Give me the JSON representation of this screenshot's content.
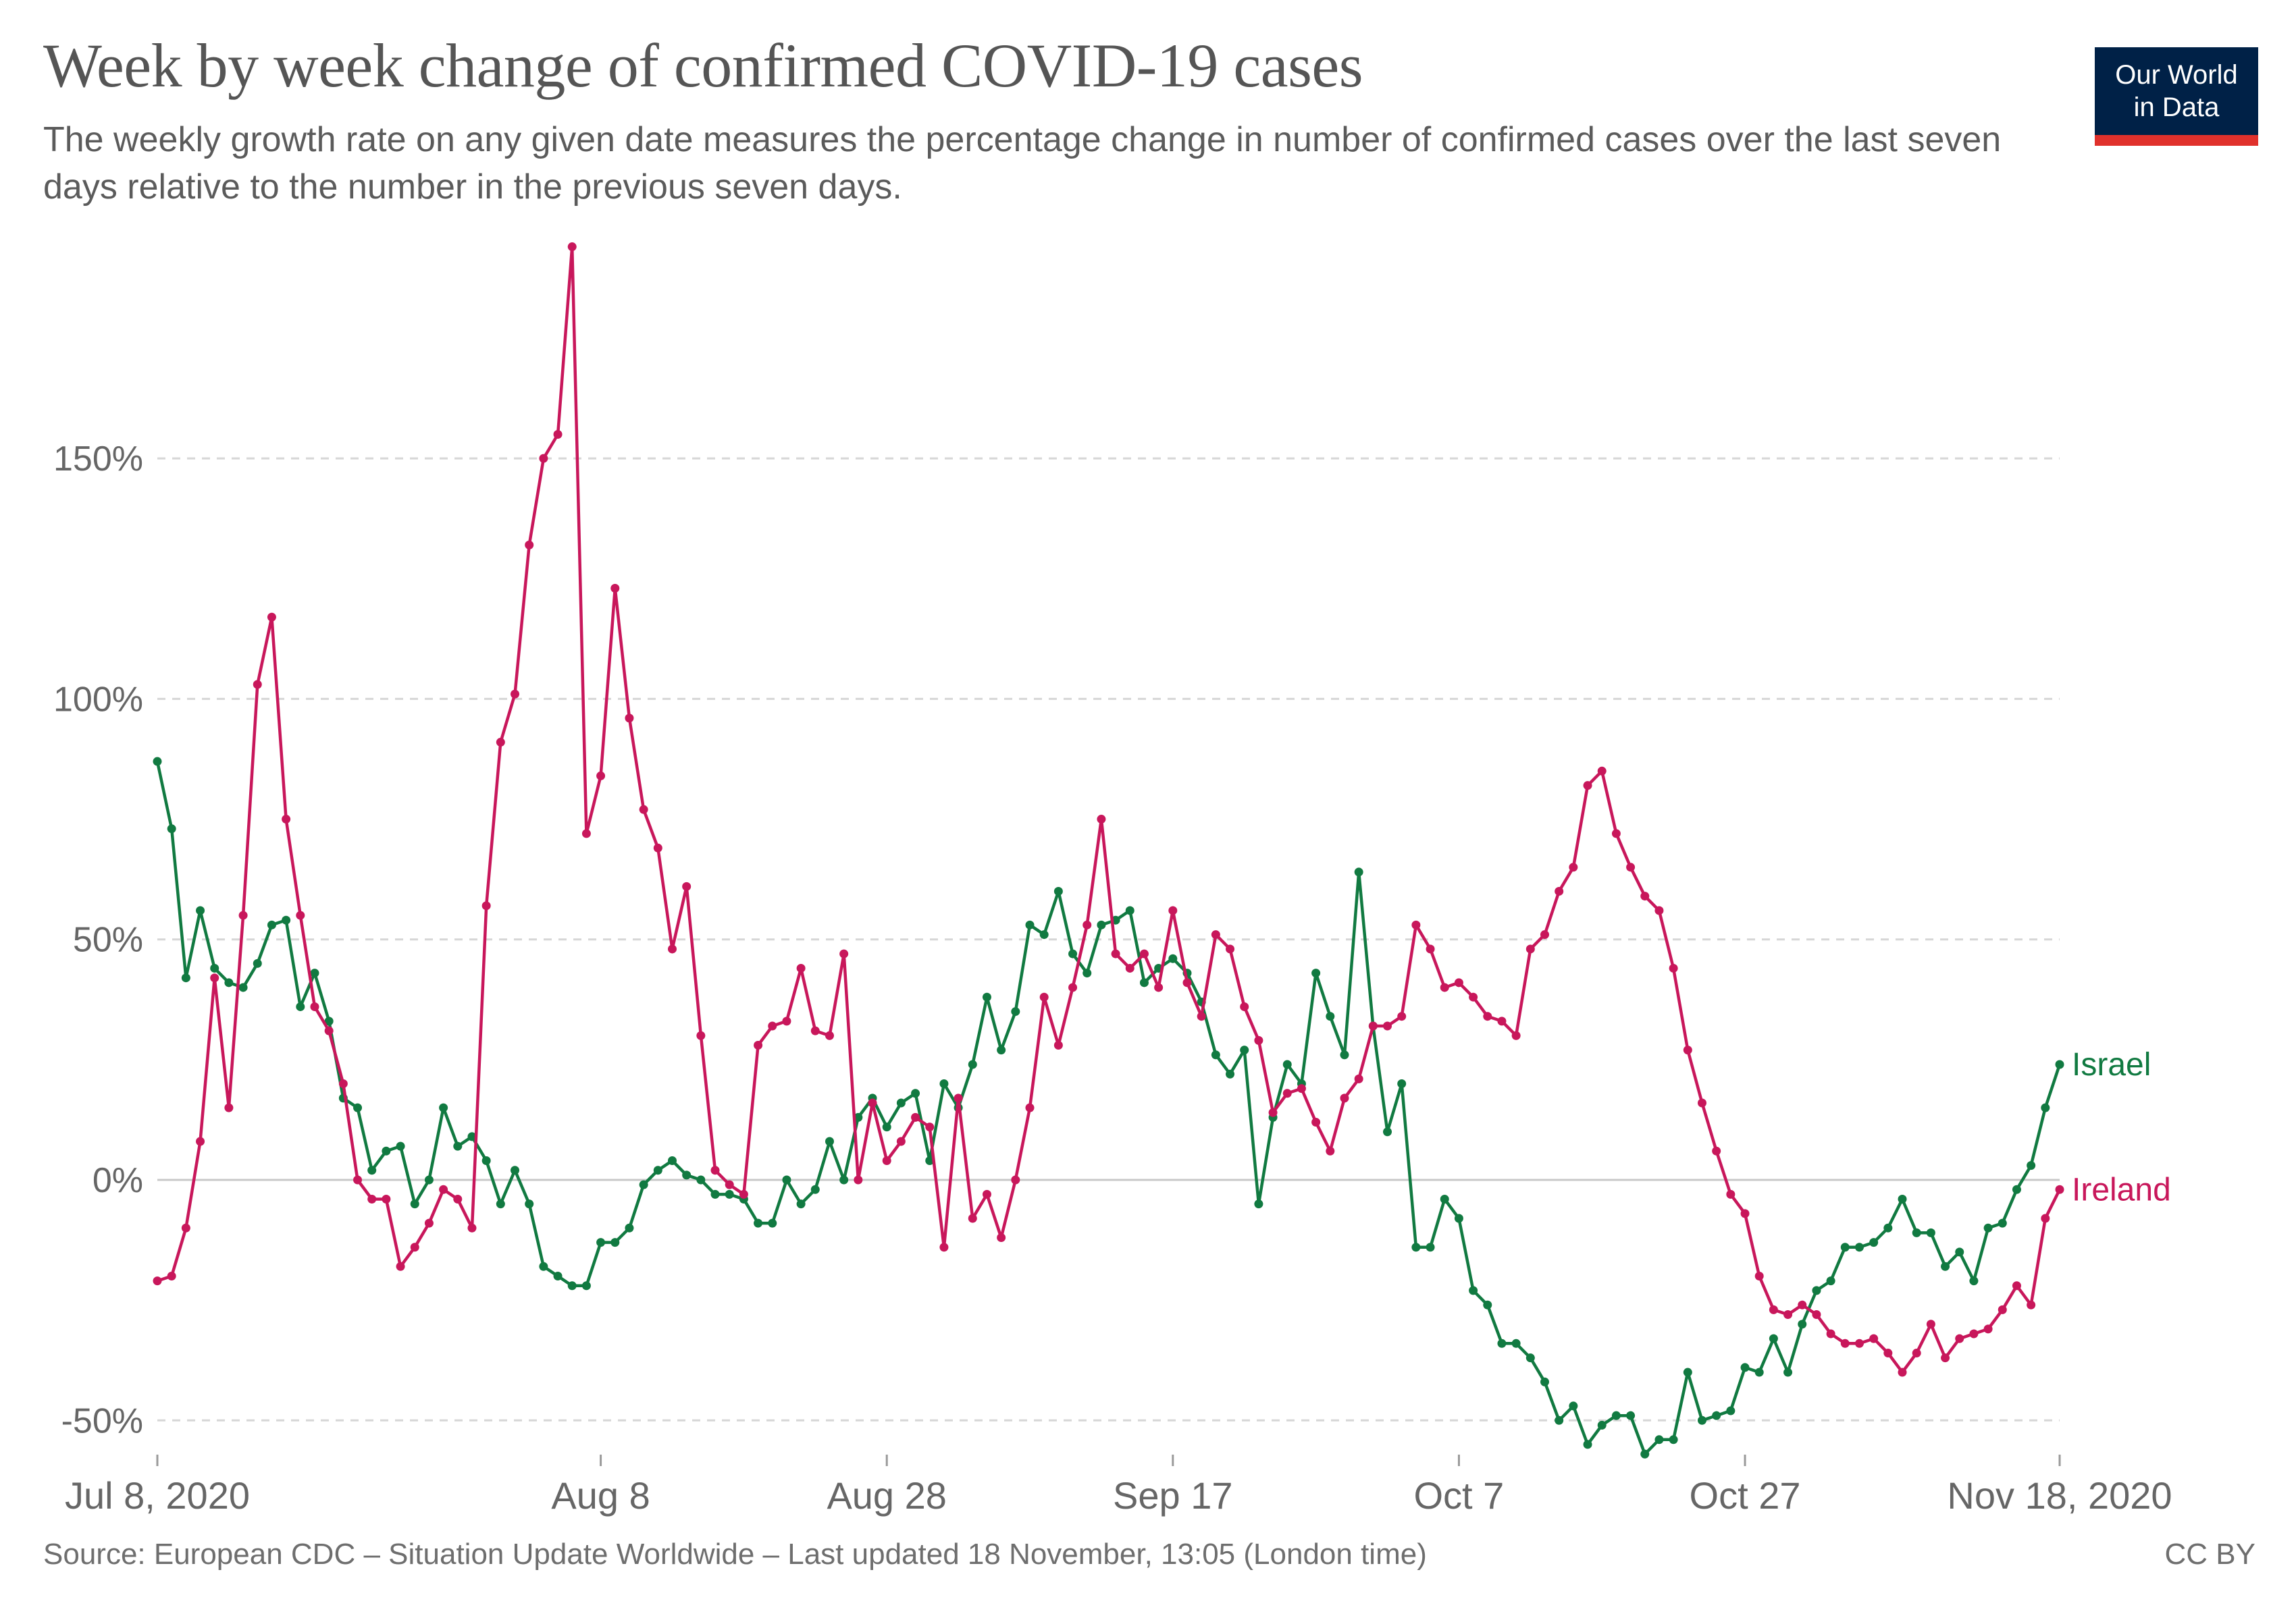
{
  "header": {
    "title": "Week by week change of confirmed COVID-19 cases",
    "subtitle": "The weekly growth rate on any given date measures the percentage change in number of confirmed cases over the last seven days relative to the number in the previous seven days."
  },
  "logo": {
    "line1": "Our World",
    "line2": "in Data",
    "bg_color": "#002147",
    "accent_color": "#e0312c"
  },
  "footer": {
    "source": "Source: European CDC – Situation Update Worldwide – Last updated 18 November, 13:05 (London time)",
    "license": "CC BY"
  },
  "chart_data": {
    "type": "line",
    "title": "Week by week change of confirmed COVID-19 cases",
    "xlabel": "",
    "ylabel": "",
    "x_start": "Jul 8, 2020",
    "x_end": "Nov 18, 2020",
    "x_ticks": [
      {
        "label": "Jul 8, 2020",
        "day": 0
      },
      {
        "label": "Aug 8",
        "day": 31
      },
      {
        "label": "Aug 28",
        "day": 51
      },
      {
        "label": "Sep 17",
        "day": 71
      },
      {
        "label": "Oct 7",
        "day": 91
      },
      {
        "label": "Oct 27",
        "day": 111
      },
      {
        "label": "Nov 18, 2020",
        "day": 133
      }
    ],
    "y_ticks": [
      {
        "label": "-50%",
        "value": -50
      },
      {
        "label": "0%",
        "value": 0
      },
      {
        "label": "50%",
        "value": 50
      },
      {
        "label": "100%",
        "value": 100
      },
      {
        "label": "150%",
        "value": 150
      }
    ],
    "ylim": [
      -57,
      196
    ],
    "grid": true,
    "series": [
      {
        "name": "Israel",
        "color": "#117a41",
        "values": [
          87,
          73,
          42,
          56,
          44,
          41,
          40,
          45,
          53,
          54,
          36,
          43,
          33,
          17,
          15,
          2,
          6,
          7,
          -5,
          0,
          15,
          7,
          9,
          4,
          -5,
          2,
          -5,
          -18,
          -20,
          -22,
          -22,
          -13,
          -13,
          -10,
          -1,
          2,
          4,
          1,
          0,
          -3,
          -3,
          -4,
          -9,
          -9,
          0,
          -5,
          -2,
          8,
          0,
          13,
          17,
          11,
          16,
          18,
          4,
          20,
          15,
          24,
          38,
          27,
          35,
          53,
          51,
          60,
          47,
          43,
          53,
          54,
          56,
          41,
          44,
          46,
          43,
          37,
          26,
          22,
          27,
          -5,
          13,
          24,
          20,
          43,
          34,
          26,
          64,
          32,
          10,
          20,
          -14,
          -14,
          -4,
          -8,
          -23,
          -26,
          -34,
          -34,
          -37,
          -42,
          -50,
          -47,
          -55,
          -51,
          -49,
          -49,
          -57,
          -54,
          -54,
          -40,
          -50,
          -49,
          -48,
          -39,
          -40,
          -33,
          -40,
          -30,
          -23,
          -21,
          -14,
          -14,
          -13,
          -10,
          -4,
          -11,
          -11,
          -18,
          -15,
          -21,
          -10,
          -9,
          -2,
          3,
          15,
          24
        ]
      },
      {
        "name": "Ireland",
        "color": "#c8175b",
        "values": [
          -21,
          -20,
          -10,
          8,
          42,
          15,
          55,
          103,
          117,
          75,
          55,
          36,
          31,
          20,
          0,
          -4,
          -4,
          -18,
          -14,
          -9,
          -2,
          -4,
          -10,
          57,
          91,
          101,
          132,
          150,
          155,
          194,
          72,
          84,
          123,
          96,
          77,
          69,
          48,
          61,
          30,
          2,
          -1,
          -3,
          28,
          32,
          33,
          44,
          31,
          30,
          47,
          0,
          16,
          4,
          8,
          13,
          11,
          -14,
          17,
          -8,
          -3,
          -12,
          0,
          15,
          38,
          28,
          40,
          53,
          75,
          47,
          44,
          47,
          40,
          56,
          41,
          34,
          51,
          48,
          36,
          29,
          14,
          18,
          19,
          12,
          6,
          17,
          21,
          32,
          32,
          34,
          53,
          48,
          40,
          41,
          38,
          34,
          33,
          30,
          48,
          51,
          60,
          65,
          82,
          85,
          72,
          65,
          59,
          56,
          44,
          27,
          16,
          6,
          -3,
          -7,
          -20,
          -27,
          -28,
          -26,
          -28,
          -32,
          -34,
          -34,
          -33,
          -36,
          -40,
          -36,
          -30,
          -37,
          -33,
          -32,
          -31,
          -27,
          -22,
          -26,
          -8,
          -2
        ]
      }
    ]
  }
}
